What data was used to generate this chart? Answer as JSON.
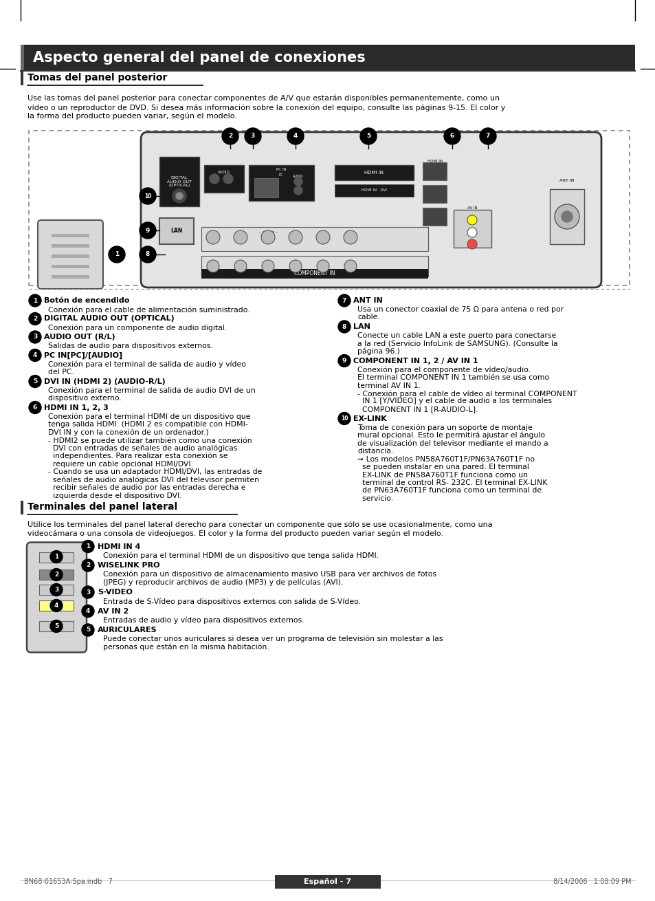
{
  "title": "Aspecto general del panel de conexiones",
  "bg_color": "#ffffff",
  "section1_title": "Tomas del panel posterior",
  "section1_intro": "Use las tomas del panel posterior para conectar componentes de A/V que estarán disponibles permanentemente, como un\nvídeo o un reproductor de DVD. Si desea más información sobre la conexión del equipo, consulte las páginas 9-15. El color y\nla forma del producto pueden variar, según el modelo.",
  "section2_title": "Terminales del panel lateral",
  "section2_intro": "Utilice los terminales del panel lateral derecho para conectar un componente que sólo se use ocasionalmente, como una\nvideocámara o una consola de videojuegos. El color y la forma del producto pueden variar según el modelo.",
  "items_left": [
    {
      "num": "1",
      "bold": "Botón de encendido",
      "text": "Conexión para el cable de alimentación suministrado."
    },
    {
      "num": "2",
      "bold": "DIGITAL AUDIO OUT (OPTICAL)",
      "text": "Conexión para un componente de audio digital."
    },
    {
      "num": "3",
      "bold": "AUDIO OUT (R/L)",
      "text": "Salidas de audio para dispositivos externos."
    },
    {
      "num": "4",
      "bold": "PC IN[PC]/[AUDIO]",
      "text": "Conexión para el terminal de salida de audio y vídeo\ndel PC."
    },
    {
      "num": "5",
      "bold": "DVI IN (HDMI 2) (AUDIO-R/L)",
      "text": "Conexión para el terminal de salida de audio DVI de un\ndispositivo externo."
    },
    {
      "num": "6",
      "bold": "HDMI IN 1, 2, 3",
      "text": "Conexión para el terminal HDMI de un dispositivo que\ntenga salida HDMI. (HDMI 2 es compatible con HDMI-\nDVI IN y con la conexión de un ordenador.)\n- HDMI2 se puede utilizar también como una conexión\n  DVI con entradas de señales de audio analógicas\n  independientes. Para realizar esta conexión se\n  requiere un cable opcional HDMI/DVI.\n- Cuando se usa un adaptador HDMI/DVI, las entradas de\n  señales de audio analógicas DVI del televisor permiten\n  recibir señales de audio por las entradas derecha e\n  izquierda desde el dispositivo DVI."
    }
  ],
  "items_right": [
    {
      "num": "7",
      "bold": "ANT IN",
      "text": "Usa un conector coaxial de 75 Ω para antena o red por\ncable."
    },
    {
      "num": "8",
      "bold": "LAN",
      "text": "Conecte un cable LAN a este puerto para conectarse\na la red (Servicio InfoLink de SAMSUNG). (Consulte la\npágina 96.)"
    },
    {
      "num": "9",
      "bold": "COMPONENT IN 1, 2 / AV IN 1",
      "text": "Conexión para el componente de vídeo/audio.\nEl terminal COMPONENT IN 1 también se usa como\nterminal AV IN 1.\n- Conexión para el cable de vídeo al terminal COMPONENT\n  IN 1 [Y/VIDEO] y el cable de audio a los terminales\n  COMPONENT IN 1 [R-AUDIO-L]."
    },
    {
      "num": "10",
      "bold": "EX-LINK",
      "text": "Toma de conexión para un soporte de montaje\nmural opcional. Esto le permitirá ajustar el ángulo\nde visualización del televisor mediante el mando a\ndistancia.\n➞ Los modelos PN58A760T1F/PN63A760T1F no\n  se pueden instalar en una pared. El terminal\n  EX-LINK de PN58A760T1F funciona como un\n  terminal de control RS- 232C. El terminal EX-LINK\n  de PN63A760T1F funciona como un terminal de\n  servicio."
    }
  ],
  "items_lateral": [
    {
      "num": "1",
      "bold": "HDMI IN 4",
      "text": "Conexión para el terminal HDMI de un dispositivo que tenga salida HDMI."
    },
    {
      "num": "2",
      "bold": "WISELINK PRO",
      "text": "Conexión para un dispositivo de almacenamiento masivo USB para ver archivos de fotos\n(JPEG) y reproducir archivos de audio (MP3) y de películas (AVI)."
    },
    {
      "num": "3",
      "bold": "S-VIDEO",
      "text": "Entrada de S-Vídeo para dispositivos externos con salida de S-Vídeo."
    },
    {
      "num": "4",
      "bold": "AV IN 2",
      "text": "Entradas de audio y vídeo para dispositivos externos."
    },
    {
      "num": "5",
      "bold": "AURICULARES",
      "text": "Puede conectar unos auriculares si desea ver un programa de televisión sin molestar a las\npersonas que están en la misma habitación."
    }
  ],
  "footer_label": "Español - 7",
  "bottom_text_left": "BN68-01653A-Spa.indb   7",
  "bottom_text_right": "8/14/2008   1:08:09 PM"
}
